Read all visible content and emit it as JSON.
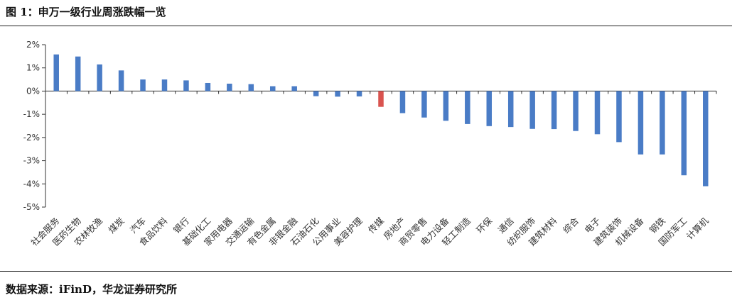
{
  "title": "图 1：申万一级行业周涨跌幅一览",
  "source": "数据来源：iFinD，华龙证券研究所",
  "colors": {
    "positive_bar": "#4a7cc6",
    "negative_bar": "#4a7cc6",
    "highlight_bar": "#d9534f",
    "axis": "#333333"
  },
  "chart_data": {
    "type": "bar",
    "title": "",
    "xlabel": "",
    "ylabel": "",
    "ylim": [
      -5,
      2
    ],
    "yticks": [
      2,
      1,
      0,
      -1,
      -2,
      -3,
      -4,
      -5
    ],
    "ytick_labels": [
      "2%",
      "1%",
      "0%",
      "-1%",
      "-2%",
      "-3%",
      "-4%",
      "-5%"
    ],
    "unit": "%",
    "grid": false,
    "legend": "none",
    "highlight_category": "传媒",
    "categories": [
      "社会服务",
      "医药生物",
      "农林牧渔",
      "煤炭",
      "汽车",
      "食品饮料",
      "银行",
      "基础化工",
      "家用电器",
      "交通运输",
      "有色金属",
      "非银金融",
      "石油石化",
      "公用事业",
      "美容护理",
      "传媒",
      "房地产",
      "商贸零售",
      "电力设备",
      "轻工制造",
      "环保",
      "通信",
      "纺织服饰",
      "建筑材料",
      "综合",
      "电子",
      "建筑装饰",
      "机械设备",
      "钢铁",
      "国防军工",
      "计算机"
    ],
    "values": [
      1.58,
      1.49,
      1.15,
      0.89,
      0.5,
      0.5,
      0.46,
      0.35,
      0.32,
      0.3,
      0.21,
      0.21,
      -0.22,
      -0.24,
      -0.23,
      -0.68,
      -0.95,
      -1.14,
      -1.28,
      -1.42,
      -1.51,
      -1.55,
      -1.63,
      -1.64,
      -1.72,
      -1.86,
      -2.2,
      -2.73,
      -2.73,
      -3.63,
      -4.1
    ]
  }
}
